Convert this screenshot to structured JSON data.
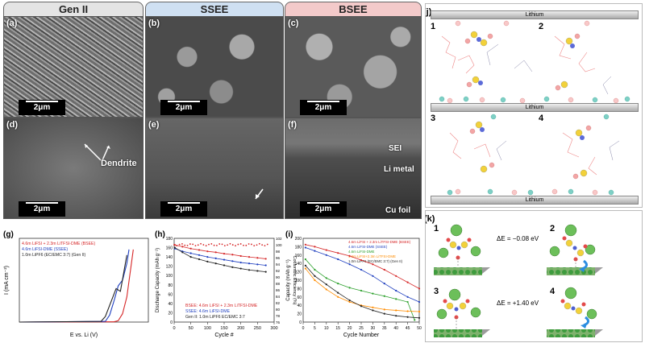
{
  "sem": {
    "tabs": [
      "Gen II",
      "SSEE",
      "BSEE"
    ],
    "colors": {
      "gen2": "#e2e2e2",
      "ssee": "#cfe0f2",
      "bsee": "#f3caca"
    },
    "panels": [
      {
        "label": "(a)",
        "scale": "2μm"
      },
      {
        "label": "(b)",
        "scale": "2μm"
      },
      {
        "label": "(c)",
        "scale": "2μm"
      },
      {
        "label": "(d)",
        "scale": "2μm",
        "annotation": "Dendrite"
      },
      {
        "label": "(e)",
        "scale": "2μm"
      },
      {
        "label": "(f)",
        "scale": "2μm",
        "layers": [
          "SEI",
          "Li metal",
          "Cu foil"
        ]
      }
    ]
  },
  "sim": {
    "label": "(j)",
    "lithium": "Lithium",
    "nums": [
      "1",
      "2",
      "3",
      "4"
    ]
  },
  "dft": {
    "label": "(k)",
    "nums": [
      "1",
      "2",
      "3",
      "4"
    ],
    "e2": "ΔE = −0.08 eV",
    "e4": "ΔE = +1.40 eV"
  },
  "chart_data": [
    {
      "type": "line",
      "label": "(g)",
      "xlabel": "E vs. Li (V)",
      "ylabel": "I (mA cm⁻²)",
      "series": [
        {
          "name": "4.6m LiFSI + 2.3m LiTFSI-DME (BSEE)",
          "color": "#d62728",
          "points": [
            [
              0,
              0
            ],
            [
              4.4,
              0.02
            ],
            [
              4.6,
              0.1
            ],
            [
              4.8,
              0.6
            ],
            [
              5.0,
              1.8
            ],
            [
              5.3,
              5.2
            ]
          ]
        },
        {
          "name": "4.6m LiFSI-DME (SSEE)",
          "color": "#1f3fbf",
          "points": [
            [
              0,
              0
            ],
            [
              4.0,
              0.05
            ],
            [
              4.2,
              0.5
            ],
            [
              4.4,
              1.5
            ],
            [
              4.6,
              2.6
            ],
            [
              4.8,
              3.0
            ],
            [
              5.0,
              4.2
            ],
            [
              5.1,
              5.2
            ]
          ]
        },
        {
          "name": "1.0m LiPF6 (EC/EMC 3:7) (Gen II)",
          "color": "#222222",
          "points": [
            [
              0,
              0
            ],
            [
              3.8,
              0.05
            ],
            [
              4.0,
              0.4
            ],
            [
              4.3,
              1.6
            ],
            [
              4.5,
              2.4
            ],
            [
              4.7,
              2.2
            ],
            [
              5.0,
              4.8
            ]
          ]
        }
      ]
    },
    {
      "type": "scatter",
      "label": "(h)",
      "xlabel": "Cycle #",
      "ylabel": "Discharge Capacity (mAh g⁻¹)",
      "y2label": "Coulombic Efficiency (%)",
      "xlim": [
        0,
        300
      ],
      "ylim": [
        0,
        180
      ],
      "y2lim": [
        76,
        102
      ],
      "xticks": [
        "0",
        "50",
        "100",
        "150",
        "200",
        "250",
        "300"
      ],
      "yticks": [
        "0",
        "20",
        "40",
        "60",
        "80",
        "100",
        "120",
        "140",
        "160",
        "180"
      ],
      "y2ticks": [
        "76",
        "78",
        "80",
        "82",
        "84",
        "86",
        "88",
        "90",
        "92",
        "94",
        "96",
        "98",
        "100",
        "102"
      ],
      "series": [
        {
          "name": "BSEE: 4.6m LiFSI + 2.3m LiTFSI-DME",
          "color": "#d62728",
          "values": [
            [
              2,
              166
            ],
            [
              25,
              162
            ],
            [
              50,
              158
            ],
            [
              75,
              155
            ],
            [
              100,
              152
            ],
            [
              125,
              150
            ],
            [
              150,
              147
            ],
            [
              175,
              145
            ],
            [
              200,
              142
            ],
            [
              225,
              140
            ],
            [
              250,
              138
            ],
            [
              275,
              136
            ]
          ]
        },
        {
          "name": "SSEE: 4.6m LiFSI-DME",
          "color": "#1f3fbf",
          "values": [
            [
              2,
              158
            ],
            [
              25,
              152
            ],
            [
              50,
              148
            ],
            [
              75,
              144
            ],
            [
              100,
              140
            ],
            [
              125,
              137
            ],
            [
              150,
              134
            ],
            [
              175,
              131
            ],
            [
              200,
              128
            ],
            [
              225,
              126
            ],
            [
              250,
              124
            ],
            [
              275,
              122
            ]
          ]
        },
        {
          "name": "Gen II: 1.0m LiPF6 EC/EMC 3:7",
          "color": "#222222",
          "values": [
            [
              2,
              160
            ],
            [
              25,
              150
            ],
            [
              50,
              140
            ],
            [
              75,
              135
            ],
            [
              100,
              130
            ],
            [
              125,
              126
            ],
            [
              150,
              122
            ],
            [
              175,
              118
            ],
            [
              200,
              115
            ],
            [
              225,
              112
            ],
            [
              250,
              110
            ],
            [
              275,
              108
            ]
          ]
        }
      ],
      "ce": 100
    },
    {
      "type": "line",
      "label": "(i)",
      "xlabel": "Cycle Number",
      "ylabel": "Capacity (mAh g⁻¹)",
      "xlim": [
        0,
        50
      ],
      "ylim": [
        0,
        200
      ],
      "xticks": [
        "0",
        "5",
        "10",
        "15",
        "20",
        "25",
        "30",
        "35",
        "40",
        "45",
        "50"
      ],
      "yticks": [
        "0",
        "20",
        "40",
        "60",
        "80",
        "100",
        "120",
        "140",
        "160",
        "180",
        "200"
      ],
      "series": [
        {
          "name": "4.6m LiFSI + 2.3m LiTFSI-DME (BSEE)",
          "color": "#d62728",
          "values": [
            [
              1,
              185
            ],
            [
              5,
              180
            ],
            [
              10,
              172
            ],
            [
              15,
              165
            ],
            [
              20,
              158
            ],
            [
              25,
              148
            ],
            [
              30,
              138
            ],
            [
              35,
              125
            ],
            [
              40,
              110
            ],
            [
              45,
              95
            ],
            [
              50,
              80
            ]
          ]
        },
        {
          "name": "4.6m LiFSI-DME (SSEE)",
          "color": "#1f3fbf",
          "values": [
            [
              1,
              178
            ],
            [
              5,
              170
            ],
            [
              10,
              160
            ],
            [
              15,
              150
            ],
            [
              20,
              138
            ],
            [
              25,
              125
            ],
            [
              30,
              110
            ],
            [
              35,
              92
            ],
            [
              40,
              75
            ],
            [
              45,
              60
            ],
            [
              50,
              48
            ]
          ]
        },
        {
          "name": "4.6m LiFSI-DME",
          "color": "#2ca02c",
          "values": [
            [
              1,
              150
            ],
            [
              5,
              125
            ],
            [
              10,
              105
            ],
            [
              15,
              92
            ],
            [
              20,
              82
            ],
            [
              25,
              75
            ],
            [
              30,
              68
            ],
            [
              35,
              62
            ],
            [
              40,
              55
            ],
            [
              45,
              48
            ],
            [
              48,
              5
            ]
          ]
        },
        {
          "name": "4.6m LiFSI+2.3m LiTFSI-DME",
          "color": "#ff8c00",
          "values": [
            [
              1,
              128
            ],
            [
              5,
              100
            ],
            [
              10,
              78
            ],
            [
              15,
              60
            ],
            [
              20,
              48
            ],
            [
              25,
              40
            ],
            [
              30,
              35
            ],
            [
              35,
              30
            ],
            [
              40,
              28
            ],
            [
              45,
              26
            ],
            [
              50,
              25
            ]
          ]
        },
        {
          "name": "1.0m LiPF6 (EC/EMC 3:7) (Gen II)",
          "color": "#222222",
          "values": [
            [
              1,
              135
            ],
            [
              5,
              110
            ],
            [
              10,
              90
            ],
            [
              15,
              70
            ],
            [
              20,
              52
            ],
            [
              25,
              38
            ],
            [
              30,
              28
            ],
            [
              35,
              20
            ],
            [
              40,
              15
            ],
            [
              45,
              12
            ],
            [
              50,
              10
            ]
          ]
        }
      ]
    }
  ]
}
